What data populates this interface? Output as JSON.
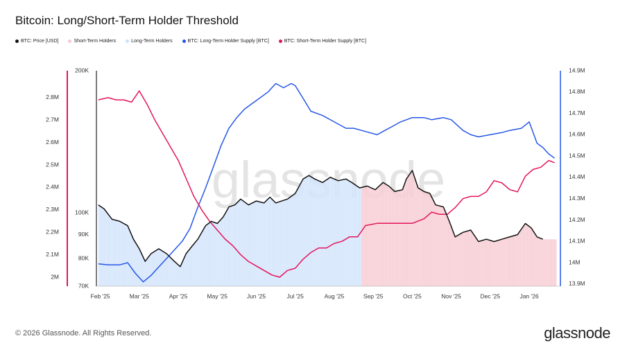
{
  "header": {
    "title": "Bitcoin: Long/Short-Term Holder Threshold"
  },
  "legend": [
    {
      "label": "BTC: Price [USD]",
      "color": "#111111"
    },
    {
      "label": "Short-Term Holders",
      "color": "#f6c8cf"
    },
    {
      "label": "Long-Term Holders",
      "color": "#cfe2fb"
    },
    {
      "label": "BTC: Long-Term Holder Supply [BTC]",
      "color": "#2456e6"
    },
    {
      "label": "BTC: Short-Term Holder Supply [BTC]",
      "color": "#e3145b"
    }
  ],
  "watermark": "glassnode",
  "footer": {
    "copyright": "© 2026 Glassnode. All Rights Reserved.",
    "brand": "glassnode"
  },
  "chart_data": {
    "type": "line",
    "title": "Bitcoin: Long/Short-Term Holder Threshold",
    "x_tick_labels": [
      "Feb '25",
      "Mar '25",
      "Apr '25",
      "May '25",
      "Jun '25",
      "Jul '25",
      "Aug '25",
      "Sep '25",
      "Oct '25",
      "Nov '25",
      "Dec '25",
      "Jan '26"
    ],
    "x_tick_positions": [
      0.5,
      1.5,
      2.5,
      3.5,
      4.5,
      5.5,
      6.5,
      7.5,
      8.5,
      9.5,
      10.5,
      11.5
    ],
    "xlim": [
      0.4,
      12.3
    ],
    "axes": {
      "sth_supply_axis": {
        "side": "left-outer",
        "ticks": [
          "2M",
          "2.1M",
          "2.2M",
          "2.3M",
          "2.4M",
          "2.5M",
          "2.6M",
          "2.7M",
          "2.8M"
        ],
        "tick_values": [
          2.0,
          2.1,
          2.2,
          2.3,
          2.4,
          2.5,
          2.6,
          2.7,
          2.8
        ],
        "range": [
          1.96,
          2.92
        ],
        "unit": "M BTC"
      },
      "price_axis": {
        "side": "left-inner",
        "scale": "log",
        "ticks": [
          "70K",
          "80K",
          "90K",
          "100K",
          "200K"
        ],
        "tick_values": [
          70,
          80,
          90,
          100,
          200
        ],
        "range": [
          70,
          200
        ],
        "unit": "K USD"
      },
      "lth_supply_axis": {
        "side": "right",
        "ticks": [
          "13.9M",
          "14M",
          "14.1M",
          "14.2M",
          "14.3M",
          "14.4M",
          "14.5M",
          "14.6M",
          "14.7M",
          "14.8M",
          "14.9M"
        ],
        "tick_values": [
          13.9,
          14.0,
          14.1,
          14.2,
          14.3,
          14.4,
          14.5,
          14.6,
          14.7,
          14.8,
          14.9
        ],
        "range": [
          13.89,
          14.9
        ],
        "unit": "M BTC"
      }
    },
    "regime_shading": [
      {
        "name": "Long-Term Holders",
        "color": "#cfe2fb",
        "x_start": 0.45,
        "x_end": 7.2
      },
      {
        "name": "Short-Term Holders",
        "color": "#f6c8cf",
        "x_start": 7.2,
        "x_end": 12.2
      }
    ],
    "series": [
      {
        "name": "BTC: Price [USD]",
        "axis": "price_axis",
        "color": "#111111",
        "points": [
          [
            0.45,
            104
          ],
          [
            0.6,
            102
          ],
          [
            0.8,
            97
          ],
          [
            1.0,
            96
          ],
          [
            1.2,
            94
          ],
          [
            1.35,
            88
          ],
          [
            1.5,
            84
          ],
          [
            1.65,
            79
          ],
          [
            1.8,
            82
          ],
          [
            2.0,
            84
          ],
          [
            2.2,
            82
          ],
          [
            2.4,
            79
          ],
          [
            2.55,
            77
          ],
          [
            2.7,
            82
          ],
          [
            2.85,
            85
          ],
          [
            3.0,
            88
          ],
          [
            3.2,
            94
          ],
          [
            3.35,
            96
          ],
          [
            3.5,
            95
          ],
          [
            3.65,
            98
          ],
          [
            3.8,
            103
          ],
          [
            3.95,
            104
          ],
          [
            4.1,
            107
          ],
          [
            4.3,
            104
          ],
          [
            4.5,
            106
          ],
          [
            4.7,
            105
          ],
          [
            4.85,
            108
          ],
          [
            5.0,
            105
          ],
          [
            5.15,
            106
          ],
          [
            5.3,
            107
          ],
          [
            5.5,
            110
          ],
          [
            5.7,
            118
          ],
          [
            5.85,
            120
          ],
          [
            6.0,
            118
          ],
          [
            6.2,
            116
          ],
          [
            6.4,
            119
          ],
          [
            6.6,
            117
          ],
          [
            6.8,
            118
          ],
          [
            6.95,
            116
          ],
          [
            7.15,
            113
          ],
          [
            7.35,
            114
          ],
          [
            7.55,
            112
          ],
          [
            7.75,
            116
          ],
          [
            7.9,
            114
          ],
          [
            8.05,
            111
          ],
          [
            8.25,
            112
          ],
          [
            8.35,
            118
          ],
          [
            8.5,
            123
          ],
          [
            8.65,
            113
          ],
          [
            8.8,
            111
          ],
          [
            8.95,
            110
          ],
          [
            9.1,
            104
          ],
          [
            9.3,
            103
          ],
          [
            9.45,
            96
          ],
          [
            9.6,
            89
          ],
          [
            9.8,
            91
          ],
          [
            10.0,
            92
          ],
          [
            10.2,
            87
          ],
          [
            10.4,
            88
          ],
          [
            10.6,
            87
          ],
          [
            10.8,
            88
          ],
          [
            11.0,
            89
          ],
          [
            11.2,
            90
          ],
          [
            11.4,
            95
          ],
          [
            11.55,
            93
          ],
          [
            11.7,
            89
          ],
          [
            11.85,
            88
          ]
        ]
      },
      {
        "name": "BTC: Long-Term Holder Supply [BTC]",
        "axis": "lth_supply_axis",
        "color": "#2456e6",
        "points": [
          [
            0.45,
            13.995
          ],
          [
            0.7,
            13.99
          ],
          [
            1.0,
            13.99
          ],
          [
            1.2,
            14.0
          ],
          [
            1.4,
            13.95
          ],
          [
            1.6,
            13.91
          ],
          [
            1.8,
            13.94
          ],
          [
            2.0,
            13.98
          ],
          [
            2.2,
            14.02
          ],
          [
            2.4,
            14.06
          ],
          [
            2.6,
            14.1
          ],
          [
            2.8,
            14.16
          ],
          [
            3.0,
            14.26
          ],
          [
            3.2,
            14.35
          ],
          [
            3.4,
            14.45
          ],
          [
            3.6,
            14.55
          ],
          [
            3.8,
            14.63
          ],
          [
            4.0,
            14.68
          ],
          [
            4.2,
            14.72
          ],
          [
            4.5,
            14.76
          ],
          [
            4.8,
            14.8
          ],
          [
            5.0,
            14.84
          ],
          [
            5.2,
            14.82
          ],
          [
            5.4,
            14.84
          ],
          [
            5.5,
            14.83
          ],
          [
            5.7,
            14.77
          ],
          [
            5.9,
            14.71
          ],
          [
            6.2,
            14.69
          ],
          [
            6.5,
            14.66
          ],
          [
            6.8,
            14.63
          ],
          [
            7.0,
            14.63
          ],
          [
            7.2,
            14.62
          ],
          [
            7.4,
            14.61
          ],
          [
            7.6,
            14.6
          ],
          [
            7.8,
            14.62
          ],
          [
            8.0,
            14.64
          ],
          [
            8.2,
            14.66
          ],
          [
            8.5,
            14.68
          ],
          [
            8.8,
            14.68
          ],
          [
            9.0,
            14.67
          ],
          [
            9.3,
            14.68
          ],
          [
            9.5,
            14.67
          ],
          [
            9.8,
            14.62
          ],
          [
            10.0,
            14.6
          ],
          [
            10.2,
            14.59
          ],
          [
            10.5,
            14.6
          ],
          [
            10.8,
            14.61
          ],
          [
            11.0,
            14.62
          ],
          [
            11.3,
            14.63
          ],
          [
            11.5,
            14.66
          ],
          [
            11.7,
            14.56
          ],
          [
            11.85,
            14.54
          ],
          [
            12.0,
            14.51
          ],
          [
            12.15,
            14.49
          ]
        ]
      },
      {
        "name": "BTC: Short-Term Holder Supply [BTC]",
        "axis": "sth_supply_axis",
        "color": "#e3145b",
        "points": [
          [
            0.45,
            2.79
          ],
          [
            0.7,
            2.8
          ],
          [
            0.9,
            2.79
          ],
          [
            1.1,
            2.79
          ],
          [
            1.3,
            2.78
          ],
          [
            1.5,
            2.83
          ],
          [
            1.7,
            2.77
          ],
          [
            1.9,
            2.7
          ],
          [
            2.1,
            2.64
          ],
          [
            2.3,
            2.58
          ],
          [
            2.5,
            2.52
          ],
          [
            2.7,
            2.44
          ],
          [
            2.9,
            2.36
          ],
          [
            3.1,
            2.3
          ],
          [
            3.3,
            2.25
          ],
          [
            3.5,
            2.21
          ],
          [
            3.7,
            2.17
          ],
          [
            3.9,
            2.14
          ],
          [
            4.1,
            2.1
          ],
          [
            4.3,
            2.07
          ],
          [
            4.5,
            2.05
          ],
          [
            4.7,
            2.03
          ],
          [
            4.9,
            2.01
          ],
          [
            5.1,
            2.0
          ],
          [
            5.3,
            2.03
          ],
          [
            5.5,
            2.04
          ],
          [
            5.7,
            2.08
          ],
          [
            5.9,
            2.11
          ],
          [
            6.1,
            2.13
          ],
          [
            6.3,
            2.13
          ],
          [
            6.5,
            2.15
          ],
          [
            6.7,
            2.16
          ],
          [
            6.9,
            2.18
          ],
          [
            7.1,
            2.18
          ],
          [
            7.3,
            2.23
          ],
          [
            7.6,
            2.24
          ],
          [
            7.9,
            2.24
          ],
          [
            8.2,
            2.24
          ],
          [
            8.5,
            2.24
          ],
          [
            8.8,
            2.26
          ],
          [
            9.0,
            2.29
          ],
          [
            9.2,
            2.28
          ],
          [
            9.4,
            2.28
          ],
          [
            9.6,
            2.31
          ],
          [
            9.8,
            2.35
          ],
          [
            10.0,
            2.36
          ],
          [
            10.2,
            2.36
          ],
          [
            10.4,
            2.38
          ],
          [
            10.6,
            2.43
          ],
          [
            10.8,
            2.42
          ],
          [
            11.0,
            2.39
          ],
          [
            11.2,
            2.38
          ],
          [
            11.4,
            2.45
          ],
          [
            11.6,
            2.48
          ],
          [
            11.8,
            2.49
          ],
          [
            12.0,
            2.52
          ],
          [
            12.15,
            2.51
          ]
        ]
      }
    ]
  }
}
